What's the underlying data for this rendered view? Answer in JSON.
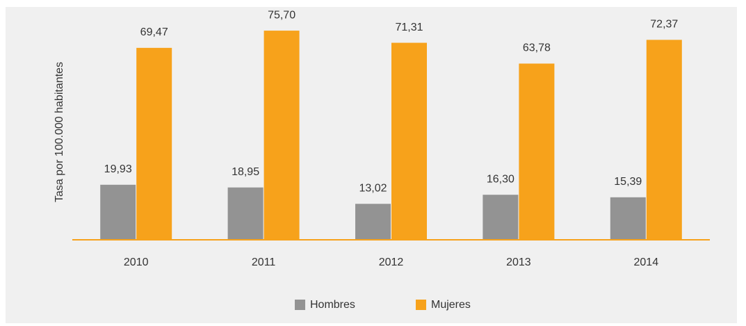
{
  "chart_data": {
    "type": "bar",
    "y_label": "Tasa por 100.000 habitantes",
    "categories": [
      "2010",
      "2011",
      "2012",
      "2013",
      "2014"
    ],
    "series": [
      {
        "name": "Hombres",
        "color": "#939393",
        "values": [
          19.93,
          18.95,
          13.02,
          16.3,
          15.39
        ],
        "value_labels": [
          "19,93",
          "18,95",
          "13,02",
          "16,30",
          "15,39"
        ]
      },
      {
        "name": "Mujeres",
        "color": "#f7a21b",
        "values": [
          69.47,
          75.7,
          71.31,
          63.78,
          72.37
        ],
        "value_labels": [
          "69,47",
          "75,70",
          "71,31",
          "63,78",
          "72,37"
        ]
      }
    ],
    "ylim": [
      0,
      80
    ]
  }
}
